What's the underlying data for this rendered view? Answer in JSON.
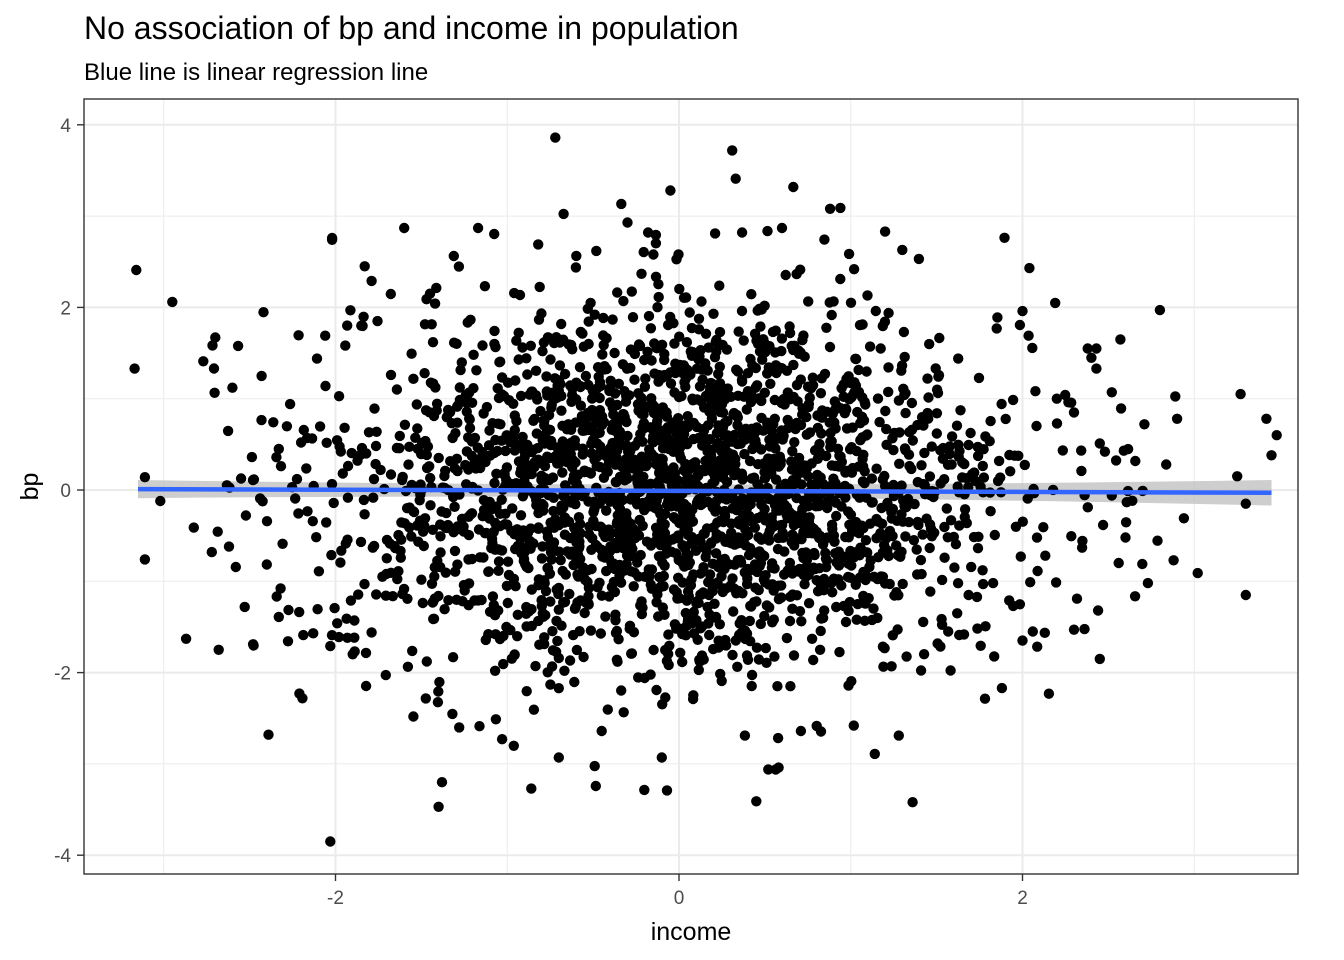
{
  "chart_data": {
    "type": "scatter",
    "title": "No association of bp and income in population",
    "subtitle": "Blue line is linear regression line",
    "xlabel": "income",
    "ylabel": "bp",
    "xlim": [
      -3.45,
      3.65
    ],
    "ylim": [
      -4.2,
      4.2
    ],
    "x_ticks": [
      -2,
      0,
      2
    ],
    "y_ticks": [
      4,
      2,
      0,
      -2,
      -4
    ],
    "x_tick_labels": [
      "-2",
      "0",
      "2"
    ],
    "y_tick_labels": [
      "4",
      "2",
      "0",
      "-2",
      "-4"
    ],
    "grid": true,
    "colors": {
      "points": "#000000",
      "regression_line": "#3366FF",
      "confidence_band": "#BEBEBE",
      "grid": "#EBEBEB",
      "panel_border": "#333333"
    },
    "series": [
      {
        "type": "scatter",
        "values": [
          [
            -0.72,
            3.86
          ],
          [
            0.31,
            3.72
          ],
          [
            0.33,
            3.41
          ],
          [
            -0.05,
            3.28
          ],
          [
            0.88,
            3.08
          ],
          [
            0.94,
            3.09
          ],
          [
            -1.6,
            2.87
          ],
          [
            -1.17,
            2.87
          ],
          [
            -0.82,
            2.69
          ],
          [
            -2.02,
            2.76
          ],
          [
            0.21,
            2.81
          ],
          [
            0.6,
            2.87
          ],
          [
            1.3,
            2.63
          ],
          [
            -0.3,
            2.93
          ],
          [
            -0.18,
            2.82
          ],
          [
            1.2,
            2.83
          ],
          [
            2.04,
            2.43
          ],
          [
            2.8,
            1.97
          ],
          [
            -3.16,
            2.41
          ],
          [
            -2.95,
            2.06
          ],
          [
            -3.17,
            1.33
          ],
          [
            -2.7,
            1.67
          ],
          [
            -2.77,
            1.41
          ],
          [
            -2.43,
            1.25
          ],
          [
            -2.6,
            1.12
          ],
          [
            -2.33,
            0.45
          ],
          [
            -2.2,
            0.52
          ],
          [
            -3.11,
            0.14
          ],
          [
            -3.02,
            -0.12
          ],
          [
            -3.11,
            -0.76
          ],
          [
            -2.72,
            -0.68
          ],
          [
            -2.62,
            -0.62
          ],
          [
            -2.87,
            -1.63
          ],
          [
            -2.68,
            -1.75
          ],
          [
            -2.48,
            -1.69
          ],
          [
            -2.33,
            -1.39
          ],
          [
            -2.21,
            -2.23
          ],
          [
            -2.39,
            -2.68
          ],
          [
            -2.03,
            -3.85
          ],
          [
            -1.38,
            -3.2
          ],
          [
            -1.4,
            -3.47
          ],
          [
            -0.86,
            -3.27
          ],
          [
            -0.07,
            -3.29
          ],
          [
            0.45,
            -3.41
          ],
          [
            1.36,
            -3.42
          ],
          [
            0.58,
            -3.04
          ],
          [
            0.52,
            -3.06
          ],
          [
            1.88,
            -2.17
          ],
          [
            2.45,
            -1.85
          ],
          [
            3.3,
            -1.15
          ],
          [
            3.02,
            -0.91
          ],
          [
            2.94,
            -0.31
          ],
          [
            3.3,
            -0.15
          ],
          [
            3.25,
            0.15
          ],
          [
            3.45,
            0.38
          ],
          [
            3.48,
            0.6
          ],
          [
            3.42,
            0.78
          ],
          [
            3.27,
            1.05
          ],
          [
            2.9,
            0.78
          ],
          [
            2.71,
            0.72
          ],
          [
            2.52,
            1.07
          ],
          [
            2.57,
            1.65
          ],
          [
            2.43,
            1.55
          ],
          [
            2.43,
            1.33
          ],
          [
            2.0,
            1.96
          ],
          [
            1.85,
            1.77
          ],
          [
            2.2,
            1.0
          ],
          [
            2.3,
            0.85
          ],
          [
            2.45,
            0.51
          ],
          [
            2.59,
            0.43
          ],
          [
            2.7,
            -0.01
          ],
          [
            2.52,
            -0.06
          ],
          [
            2.38,
            -0.19
          ],
          [
            2.6,
            -0.52
          ],
          [
            2.56,
            -0.8
          ],
          [
            2.73,
            -1.02
          ],
          [
            2.88,
            -0.77
          ],
          [
            2.3,
            -1.53
          ],
          [
            2.44,
            -1.32
          ],
          [
            2.0,
            -1.65
          ],
          [
            2.06,
            -1.55
          ],
          [
            1.62,
            -1.35
          ],
          [
            1.14,
            -2.89
          ],
          [
            1.28,
            -2.69
          ],
          [
            0.71,
            -2.64
          ],
          [
            -0.1,
            -2.93
          ],
          [
            -0.45,
            -2.64
          ],
          [
            -0.7,
            -2.93
          ],
          [
            -1.03,
            -2.73
          ],
          [
            -1.28,
            -2.6
          ],
          [
            -1.79,
            -1.56
          ],
          [
            -2.13,
            -1.57
          ],
          [
            -1.9,
            -1.8
          ],
          [
            -1.99,
            -1.46
          ],
          [
            -2.03,
            -1.71
          ],
          [
            -1.85,
            1.8
          ],
          [
            -2.06,
            1.69
          ],
          [
            -1.79,
            2.29
          ],
          [
            -1.83,
            2.45
          ],
          [
            -1.47,
            2.09
          ],
          [
            -1.45,
            2.15
          ],
          [
            -2.02,
            2.74
          ]
        ]
      },
      {
        "type": "line",
        "name": "linear regression",
        "x": [
          -3.15,
          3.45
        ],
        "y": [
          0.01,
          -0.03
        ]
      }
    ]
  }
}
